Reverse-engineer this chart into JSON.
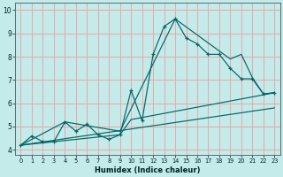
{
  "xlabel": "Humidex (Indice chaleur)",
  "bg_color": "#c5eaea",
  "grid_color": "#e8a8a8",
  "line_color": "#006666",
  "xlim": [
    -0.5,
    23.5
  ],
  "ylim": [
    3.8,
    10.3
  ],
  "xticks": [
    0,
    1,
    2,
    3,
    4,
    5,
    6,
    7,
    8,
    9,
    10,
    11,
    12,
    13,
    14,
    15,
    16,
    17,
    18,
    19,
    20,
    21,
    22,
    23
  ],
  "yticks": [
    4,
    5,
    6,
    7,
    8,
    9,
    10
  ],
  "line1_x": [
    0,
    1,
    2,
    3,
    4,
    5,
    6,
    7,
    8,
    9,
    10,
    11,
    12,
    13,
    14,
    15,
    16,
    17,
    18,
    19,
    20,
    21,
    22,
    23
  ],
  "line1_y": [
    4.2,
    4.6,
    4.35,
    4.35,
    5.2,
    4.8,
    5.1,
    4.65,
    4.45,
    4.65,
    6.55,
    5.25,
    8.1,
    9.3,
    9.62,
    8.8,
    8.55,
    8.1,
    8.1,
    7.5,
    7.05,
    7.05,
    6.4,
    6.45
  ],
  "line2_x": [
    0,
    4,
    9,
    14,
    19,
    20,
    21,
    22,
    23
  ],
  "line2_y": [
    4.2,
    5.2,
    4.8,
    9.62,
    7.9,
    8.1,
    7.1,
    6.4,
    6.45
  ],
  "line3_x": [
    0,
    9,
    10,
    23
  ],
  "line3_y": [
    4.2,
    4.65,
    5.3,
    6.45
  ],
  "line4_x": [
    0,
    23
  ],
  "line4_y": [
    4.2,
    5.8
  ]
}
